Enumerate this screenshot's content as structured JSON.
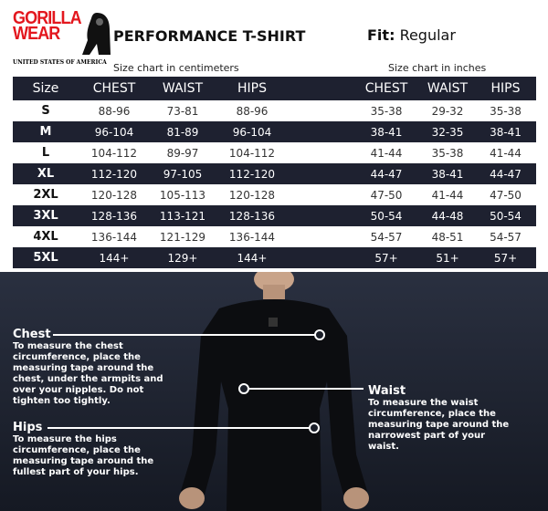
{
  "brand": {
    "name_line1": "GORILLA",
    "name_line2": "WEAR",
    "tagline": "UNITED STATES OF AMERICA"
  },
  "title": "PERFORMANCE T-SHIRT",
  "fit": {
    "label": "Fit:",
    "value": "Regular"
  },
  "captions": {
    "cm": "Size chart in centimeters",
    "inches": "Size chart in inches"
  },
  "table": {
    "headers": [
      "Size",
      "CHEST",
      "WAIST",
      "HIPS",
      "",
      "CHEST",
      "WAIST",
      "HIPS"
    ],
    "rows": [
      [
        "S",
        "88-96",
        "73-81",
        "88-96",
        "",
        "35-38",
        "29-32",
        "35-38"
      ],
      [
        "M",
        "96-104",
        "81-89",
        "96-104",
        "",
        "38-41",
        "32-35",
        "38-41"
      ],
      [
        "L",
        "104-112",
        "89-97",
        "104-112",
        "",
        "41-44",
        "35-38",
        "41-44"
      ],
      [
        "XL",
        "112-120",
        "97-105",
        "112-120",
        "",
        "44-47",
        "38-41",
        "44-47"
      ],
      [
        "2XL",
        "120-128",
        "105-113",
        "120-128",
        "",
        "47-50",
        "41-44",
        "47-50"
      ],
      [
        "3XL",
        "128-136",
        "113-121",
        "128-136",
        "",
        "50-54",
        "44-48",
        "50-54"
      ],
      [
        "4XL",
        "136-144",
        "121-129",
        "136-144",
        "",
        "54-57",
        "48-51",
        "54-57"
      ],
      [
        "5XL",
        "144+",
        "129+",
        "144+",
        "",
        "57+",
        "51+",
        "57+"
      ]
    ]
  },
  "measure": {
    "chest": {
      "title": "Chest",
      "text": "To measure the chest circumference, place the measuring tape around the chest, under the armpits and over your nipples. Do not tighten too tightly."
    },
    "waist": {
      "title": "Waist",
      "text": "To measure the waist circumference, place the measuring tape around the narrowest part of your waist."
    },
    "hips": {
      "title": "Hips",
      "text": "To measure the hips circumference, place the measuring tape around the fullest part of your hips."
    }
  }
}
